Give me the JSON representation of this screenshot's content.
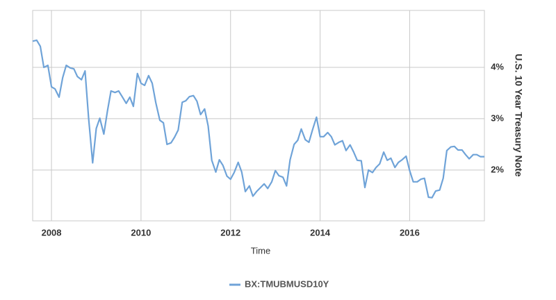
{
  "chart_data": {
    "type": "line",
    "x_label": "Time",
    "y_label": "U.S. 10 Year Treasury Note",
    "x": [
      2007.58,
      2007.67,
      2007.75,
      2007.83,
      2007.92,
      2008.0,
      2008.08,
      2008.17,
      2008.25,
      2008.33,
      2008.42,
      2008.5,
      2008.58,
      2008.67,
      2008.75,
      2008.83,
      2008.92,
      2009.0,
      2009.08,
      2009.17,
      2009.25,
      2009.33,
      2009.42,
      2009.5,
      2009.58,
      2009.67,
      2009.75,
      2009.83,
      2009.92,
      2010.0,
      2010.08,
      2010.17,
      2010.25,
      2010.33,
      2010.42,
      2010.5,
      2010.58,
      2010.67,
      2010.75,
      2010.83,
      2010.92,
      2011.0,
      2011.08,
      2011.17,
      2011.25,
      2011.33,
      2011.42,
      2011.5,
      2011.58,
      2011.67,
      2011.75,
      2011.83,
      2011.92,
      2012.0,
      2012.08,
      2012.17,
      2012.25,
      2012.33,
      2012.42,
      2012.5,
      2012.58,
      2012.67,
      2012.75,
      2012.83,
      2012.92,
      2013.0,
      2013.08,
      2013.17,
      2013.25,
      2013.33,
      2013.42,
      2013.5,
      2013.58,
      2013.67,
      2013.75,
      2013.83,
      2013.92,
      2014.0,
      2014.08,
      2014.17,
      2014.25,
      2014.33,
      2014.42,
      2014.5,
      2014.58,
      2014.67,
      2014.75,
      2014.83,
      2014.92,
      2015.0,
      2015.08,
      2015.17,
      2015.25,
      2015.33,
      2015.42,
      2015.5,
      2015.58,
      2015.67,
      2015.75,
      2015.83,
      2015.92,
      2016.0,
      2016.08,
      2016.17,
      2016.25,
      2016.33,
      2016.42,
      2016.5,
      2016.58,
      2016.67,
      2016.75,
      2016.83,
      2016.92,
      2017.0,
      2017.08,
      2017.17,
      2017.25,
      2017.33,
      2017.42,
      2017.5,
      2017.58,
      2017.67
    ],
    "series": [
      {
        "name": "BX:TMUBMUSD10Y",
        "color": "#6fa3d8",
        "values": [
          4.51,
          4.53,
          4.41,
          4.0,
          4.04,
          3.62,
          3.58,
          3.42,
          3.8,
          4.04,
          3.99,
          3.97,
          3.82,
          3.76,
          3.93,
          3.01,
          2.14,
          2.81,
          3.01,
          2.7,
          3.15,
          3.54,
          3.51,
          3.54,
          3.43,
          3.3,
          3.42,
          3.24,
          3.88,
          3.69,
          3.65,
          3.84,
          3.69,
          3.31,
          2.97,
          2.92,
          2.5,
          2.53,
          2.64,
          2.78,
          3.32,
          3.35,
          3.43,
          3.45,
          3.34,
          3.08,
          3.19,
          2.86,
          2.19,
          1.96,
          2.2,
          2.09,
          1.88,
          1.82,
          1.95,
          2.15,
          1.96,
          1.58,
          1.69,
          1.49,
          1.58,
          1.66,
          1.73,
          1.64,
          1.77,
          1.99,
          1.89,
          1.86,
          1.69,
          2.2,
          2.5,
          2.58,
          2.8,
          2.59,
          2.54,
          2.78,
          3.03,
          2.65,
          2.65,
          2.73,
          2.65,
          2.49,
          2.54,
          2.57,
          2.38,
          2.49,
          2.35,
          2.19,
          2.18,
          1.66,
          2.0,
          1.95,
          2.05,
          2.12,
          2.35,
          2.19,
          2.23,
          2.05,
          2.15,
          2.2,
          2.27,
          1.99,
          1.77,
          1.77,
          1.82,
          1.84,
          1.47,
          1.46,
          1.59,
          1.61,
          1.84,
          2.38,
          2.45,
          2.46,
          2.39,
          2.39,
          2.3,
          2.22,
          2.3,
          2.3,
          2.26,
          2.26
        ]
      }
    ],
    "xlim": [
      2007.58,
      2017.67
    ],
    "xticks": [
      2008,
      2010,
      2012,
      2014,
      2016
    ],
    "ylim": [
      1.01,
      5.11
    ],
    "yticks": [
      {
        "value": 2,
        "label": "2%"
      },
      {
        "value": 3,
        "label": "3%"
      },
      {
        "value": 4,
        "label": "4%"
      }
    ],
    "grid": true,
    "legend": "bottom"
  }
}
